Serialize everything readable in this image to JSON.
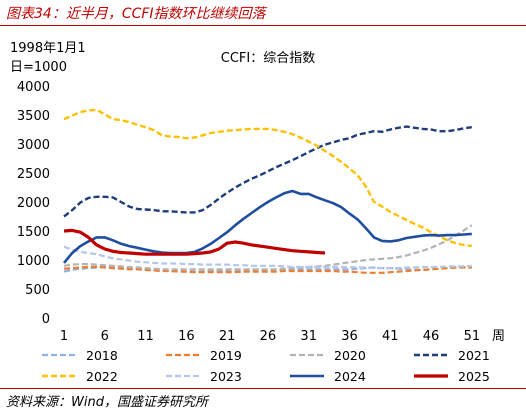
{
  "figure_title": "图表34：近半月，CCFI指数环比继续回落",
  "source": "资料来源：Wind，国盛证券研究所",
  "chart_data": {
    "type": "line",
    "title": "CCFI：综合指数",
    "ylabel_line1": "1998年1月1",
    "ylabel_line2": "日=1000",
    "xunit": "周",
    "xlim": [
      1,
      52
    ],
    "ylim": [
      0,
      4000
    ],
    "xticks": [
      1,
      6,
      11,
      16,
      21,
      26,
      31,
      36,
      41,
      46,
      51
    ],
    "yticks": [
      0,
      500,
      1000,
      1500,
      2000,
      2500,
      3000,
      3500,
      4000
    ],
    "legend_position": "bottom",
    "grid": false,
    "series": [
      {
        "name": "2018",
        "color": "#8fb3e8",
        "style": "dashed",
        "width": 2.2,
        "values": [
          800,
          830,
          850,
          860,
          870,
          880,
          880,
          870,
          860,
          850,
          840,
          830,
          820,
          810,
          810,
          800,
          800,
          800,
          810,
          820,
          820,
          820,
          830,
          830,
          830,
          830,
          830,
          840,
          840,
          840,
          840,
          840,
          840,
          840,
          840,
          840,
          850,
          860,
          870,
          860,
          860,
          850,
          840,
          830,
          830,
          840,
          850,
          860,
          870,
          880,
          880
        ]
      },
      {
        "name": "2019",
        "color": "#ed7d31",
        "style": "dashed",
        "width": 2.2,
        "values": [
          850,
          860,
          870,
          880,
          880,
          870,
          860,
          850,
          840,
          840,
          830,
          820,
          810,
          810,
          800,
          800,
          790,
          790,
          790,
          790,
          790,
          790,
          800,
          800,
          800,
          800,
          800,
          810,
          810,
          810,
          810,
          810,
          810,
          810,
          800,
          800,
          790,
          780,
          780,
          780,
          790,
          800,
          810,
          820,
          830,
          840,
          850,
          860,
          870,
          870,
          870
        ]
      },
      {
        "name": "2020",
        "color": "#b3b3b3",
        "style": "dashed",
        "width": 2.2,
        "values": [
          900,
          920,
          930,
          930,
          920,
          910,
          900,
          890,
          880,
          870,
          860,
          850,
          840,
          840,
          840,
          840,
          840,
          840,
          840,
          840,
          840,
          840,
          840,
          840,
          840,
          840,
          840,
          850,
          860,
          870,
          880,
          890,
          900,
          920,
          940,
          960,
          980,
          1000,
          1010,
          1020,
          1030,
          1050,
          1080,
          1120,
          1160,
          1210,
          1270,
          1340,
          1420,
          1510,
          1600
        ]
      },
      {
        "name": "2021",
        "color": "#1f3d7a",
        "style": "dashed",
        "width": 2.4,
        "values": [
          1750,
          1860,
          1990,
          2070,
          2090,
          2090,
          2080,
          2000,
          1920,
          1880,
          1870,
          1860,
          1840,
          1840,
          1830,
          1820,
          1820,
          1860,
          1950,
          2060,
          2160,
          2250,
          2330,
          2400,
          2460,
          2530,
          2600,
          2660,
          2720,
          2790,
          2860,
          2930,
          2990,
          3030,
          3070,
          3100,
          3160,
          3190,
          3220,
          3210,
          3250,
          3280,
          3300,
          3280,
          3260,
          3250,
          3220,
          3220,
          3240,
          3270,
          3290
        ]
      },
      {
        "name": "2022",
        "color": "#ffc000",
        "style": "dashed",
        "width": 2.4,
        "values": [
          3430,
          3490,
          3550,
          3580,
          3590,
          3510,
          3430,
          3410,
          3380,
          3330,
          3290,
          3240,
          3150,
          3130,
          3120,
          3100,
          3110,
          3150,
          3190,
          3210,
          3230,
          3240,
          3250,
          3260,
          3260,
          3260,
          3240,
          3210,
          3170,
          3110,
          3040,
          2970,
          2880,
          2790,
          2690,
          2580,
          2460,
          2270,
          2000,
          1920,
          1830,
          1760,
          1690,
          1620,
          1560,
          1480,
          1410,
          1340,
          1290,
          1260,
          1240
        ]
      },
      {
        "name": "2023",
        "color": "#b4c7e7",
        "style": "dashed",
        "width": 2.2,
        "values": [
          1230,
          1180,
          1140,
          1120,
          1100,
          1060,
          1030,
          1010,
          990,
          970,
          960,
          950,
          940,
          940,
          940,
          930,
          930,
          920,
          920,
          920,
          920,
          910,
          910,
          900,
          900,
          900,
          900,
          890,
          880,
          880,
          880,
          880,
          880,
          880,
          880,
          880,
          870,
          870,
          860,
          860,
          860,
          860,
          870,
          870,
          880,
          880,
          880,
          890,
          890,
          890,
          900
        ]
      },
      {
        "name": "2024",
        "color": "#1f4ea1",
        "style": "solid",
        "width": 2.6,
        "values": [
          950,
          1120,
          1240,
          1320,
          1390,
          1390,
          1340,
          1280,
          1240,
          1210,
          1180,
          1150,
          1130,
          1120,
          1120,
          1120,
          1140,
          1200,
          1280,
          1380,
          1480,
          1600,
          1710,
          1810,
          1910,
          2000,
          2080,
          2150,
          2190,
          2140,
          2140,
          2080,
          2030,
          1980,
          1910,
          1800,
          1700,
          1550,
          1390,
          1330,
          1320,
          1340,
          1380,
          1400,
          1420,
          1430,
          1420,
          1430,
          1430,
          1440,
          1450
        ]
      },
      {
        "name": "2025",
        "color": "#c00000",
        "style": "solid",
        "width": 3.2,
        "values": [
          1500,
          1510,
          1480,
          1390,
          1260,
          1190,
          1150,
          1130,
          1120,
          1110,
          1100,
          1100,
          1100,
          1100,
          1100,
          1100,
          1110,
          1120,
          1140,
          1190,
          1290,
          1310,
          1290,
          1260,
          1240,
          1220,
          1200,
          1180,
          1160,
          1150,
          1140,
          1130,
          1120
        ]
      }
    ]
  }
}
